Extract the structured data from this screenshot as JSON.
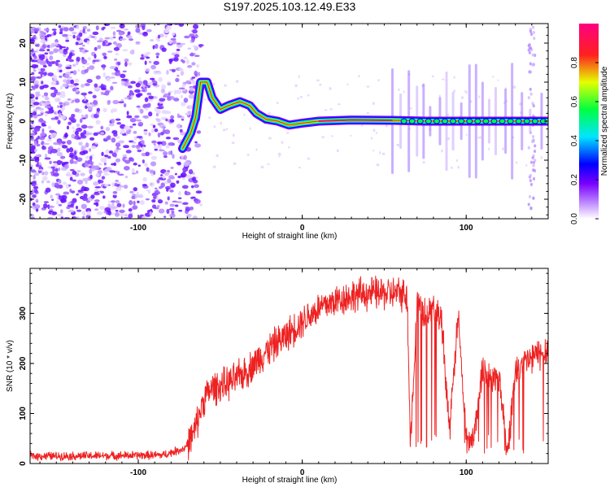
{
  "chart_data": [
    {
      "type": "heatmap",
      "title": "S197.2025.103.12.49.E33",
      "xlabel": "Height of straight line (km)",
      "ylabel": "Frequency (Hz)",
      "xlim": [
        -166,
        150
      ],
      "ylim": [
        -25,
        25
      ],
      "xticks": [
        -100,
        0,
        100
      ],
      "yticks": [
        -20,
        -10,
        0,
        10,
        20
      ],
      "colorbar": {
        "label": "Normalized spectral amplitude",
        "range": [
          0,
          1
        ],
        "ticks": [
          "0.0",
          "0.2",
          "0.4",
          "0.6",
          "0.8"
        ],
        "colors": [
          "#ffffff",
          "#7a00ff",
          "#0000ff",
          "#00e5ff",
          "#00ff40",
          "#e5ff00",
          "#ff2020",
          "#ff0080"
        ]
      },
      "ridge": [
        {
          "x": -73,
          "y": -7
        },
        {
          "x": -68,
          "y": -3
        },
        {
          "x": -65,
          "y": 1
        },
        {
          "x": -62,
          "y": 10
        },
        {
          "x": -58,
          "y": 10
        },
        {
          "x": -55,
          "y": 6
        },
        {
          "x": -50,
          "y": 3
        },
        {
          "x": -45,
          "y": 4
        },
        {
          "x": -38,
          "y": 5
        },
        {
          "x": -32,
          "y": 4
        },
        {
          "x": -28,
          "y": 2
        },
        {
          "x": -22,
          "y": 0.5
        },
        {
          "x": -15,
          "y": 0
        },
        {
          "x": -8,
          "y": -1
        },
        {
          "x": 0,
          "y": -0.5
        },
        {
          "x": 10,
          "y": 0
        },
        {
          "x": 30,
          "y": 0.3
        },
        {
          "x": 55,
          "y": 0.2
        },
        {
          "x": 75,
          "y": 0
        },
        {
          "x": 100,
          "y": 0
        },
        {
          "x": 125,
          "y": 0
        },
        {
          "x": 150,
          "y": 0
        }
      ]
    },
    {
      "type": "line",
      "xlabel": "Height of straight line (km)",
      "ylabel": "SNR (10 * v/v)",
      "xlim": [
        -166,
        150
      ],
      "ylim": [
        0,
        390
      ],
      "xticks": [
        -100,
        0,
        100
      ],
      "yticks": [
        0,
        100,
        200,
        300
      ],
      "line_color": "#ee2222",
      "series": [
        {
          "x": [
            -166,
            -140,
            -110,
            -85,
            -72,
            -66,
            -60,
            -55,
            -50,
            -45,
            -40,
            -32,
            -25,
            -18,
            -10,
            0,
            10,
            20,
            30,
            40,
            50,
            60,
            64,
            66,
            70,
            75,
            80,
            85,
            90,
            95,
            100,
            105,
            110,
            115,
            120,
            125,
            130,
            135,
            140,
            145,
            150
          ],
          "y": [
            15,
            15,
            16,
            17,
            30,
            60,
            130,
            150,
            155,
            160,
            170,
            190,
            215,
            235,
            255,
            285,
            310,
            325,
            335,
            340,
            340,
            340,
            335,
            45,
            320,
            300,
            310,
            290,
            60,
            300,
            45,
            60,
            190,
            165,
            175,
            25,
            180,
            200,
            210,
            220,
            230
          ]
        }
      ]
    }
  ]
}
